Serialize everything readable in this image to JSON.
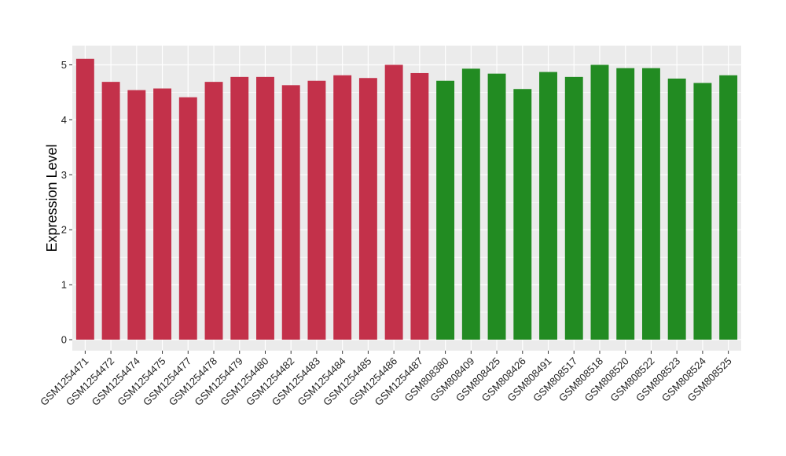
{
  "chart_data": {
    "type": "bar",
    "title": "",
    "xlabel": "",
    "ylabel": "Expression Level",
    "ylim": [
      -0.2,
      5.35
    ],
    "yticks": [
      0,
      1,
      2,
      3,
      4,
      5
    ],
    "grid": true,
    "legend": "none",
    "panel_color": "#ebebeb",
    "grid_color": "#ffffff",
    "categories": [
      "GSM1254471",
      "GSM1254472",
      "GSM1254474",
      "GSM1254475",
      "GSM1254477",
      "GSM1254478",
      "GSM1254479",
      "GSM1254480",
      "GSM1254482",
      "GSM1254483",
      "GSM1254484",
      "GSM1254485",
      "GSM1254486",
      "GSM1254487",
      "GSM808380",
      "GSM808409",
      "GSM808425",
      "GSM808426",
      "GSM808491",
      "GSM808517",
      "GSM808518",
      "GSM808520",
      "GSM808522",
      "GSM808523",
      "GSM808524",
      "GSM808525"
    ],
    "values": [
      5.11,
      4.69,
      4.54,
      4.57,
      4.41,
      4.69,
      4.78,
      4.78,
      4.63,
      4.71,
      4.81,
      4.76,
      5.0,
      4.85,
      4.71,
      4.93,
      4.84,
      4.56,
      4.87,
      4.78,
      5.0,
      4.94,
      4.94,
      4.75,
      4.67,
      4.81
    ],
    "bar_colors": [
      "#c3314a",
      "#c3314a",
      "#c3314a",
      "#c3314a",
      "#c3314a",
      "#c3314a",
      "#c3314a",
      "#c3314a",
      "#c3314a",
      "#c3314a",
      "#c3314a",
      "#c3314a",
      "#c3314a",
      "#c3314a",
      "#228b22",
      "#228b22",
      "#228b22",
      "#228b22",
      "#228b22",
      "#228b22",
      "#228b22",
      "#228b22",
      "#228b22",
      "#228b22",
      "#228b22",
      "#228b22"
    ]
  }
}
